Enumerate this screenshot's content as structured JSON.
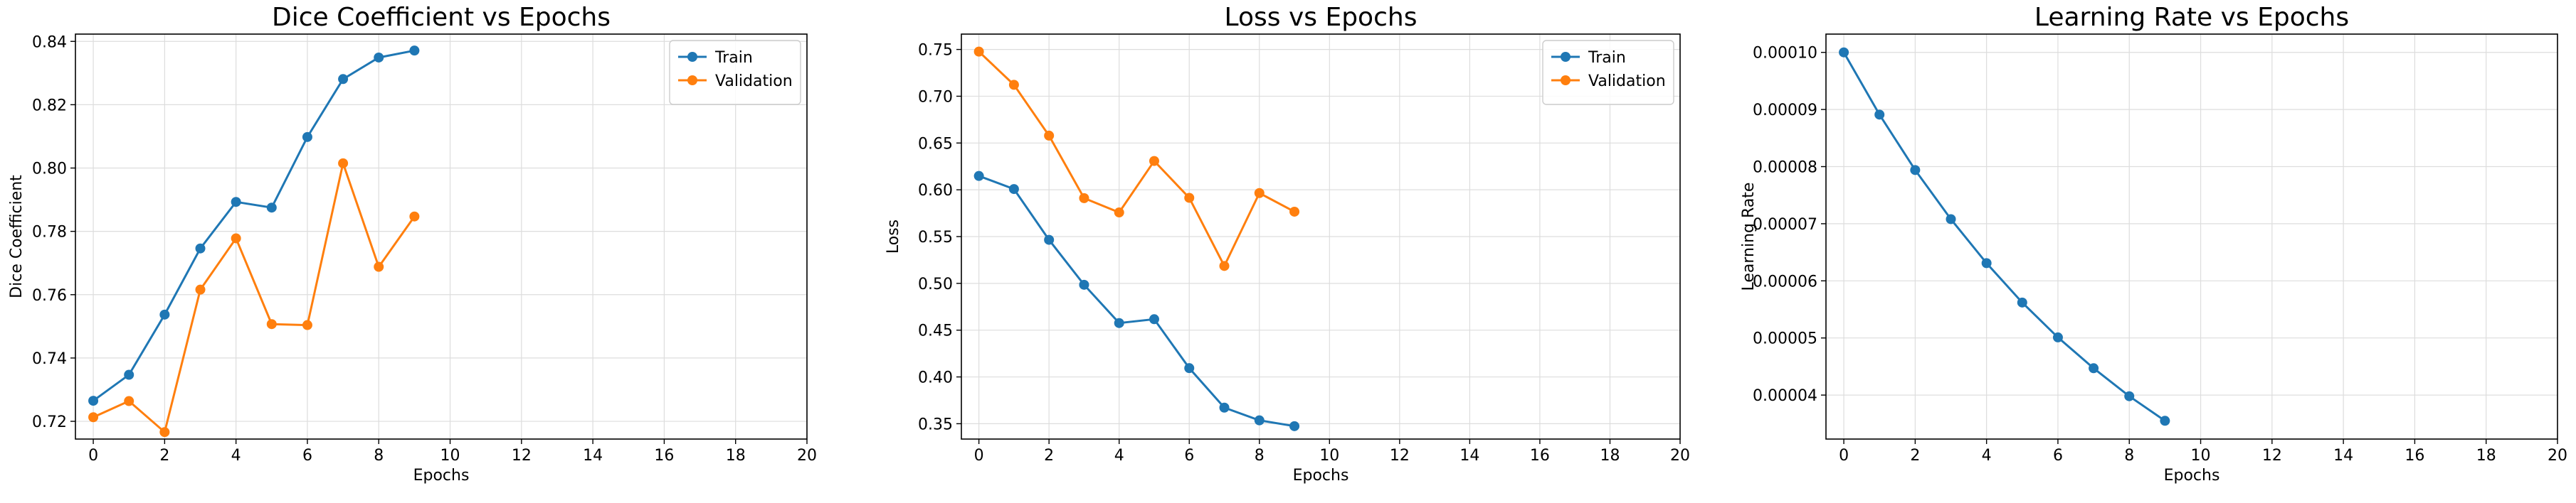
{
  "chart_data": [
    {
      "type": "line",
      "title": "Dice Coefficient vs Epochs",
      "xlabel": "Epochs",
      "ylabel": "Dice Coefficient",
      "xlim": [
        -0.5,
        20
      ],
      "ylim": [
        0.7144,
        0.8423
      ],
      "xticks": [
        0,
        2,
        4,
        6,
        8,
        10,
        12,
        14,
        16,
        18,
        20
      ],
      "xtick_labels": [
        "0",
        "2",
        "4",
        "6",
        "8",
        "10",
        "12",
        "14",
        "16",
        "18",
        "20"
      ],
      "yticks": [
        0.72,
        0.74,
        0.76,
        0.78,
        0.8,
        0.82,
        0.84
      ],
      "ytick_labels": [
        "0.72",
        "0.74",
        "0.76",
        "0.78",
        "0.80",
        "0.82",
        "0.84"
      ],
      "grid": true,
      "legend": "top-right",
      "x": [
        0,
        1,
        2,
        3,
        4,
        5,
        6,
        7,
        8,
        9
      ],
      "series": [
        {
          "name": "Train",
          "color": "#1f77b4",
          "values": [
            0.7265,
            0.7347,
            0.7537,
            0.7746,
            0.7893,
            0.7875,
            0.8098,
            0.8281,
            0.8349,
            0.8371
          ]
        },
        {
          "name": "Validation",
          "color": "#ff7f0e",
          "values": [
            0.7213,
            0.7264,
            0.7166,
            0.7616,
            0.7778,
            0.7507,
            0.7504,
            0.8015,
            0.7688,
            0.7847
          ]
        }
      ]
    },
    {
      "type": "line",
      "title": "Loss vs Epochs",
      "xlabel": "Epochs",
      "ylabel": "Loss",
      "xlim": [
        -0.5,
        20
      ],
      "ylim": [
        0.3336,
        0.7664
      ],
      "xticks": [
        0,
        2,
        4,
        6,
        8,
        10,
        12,
        14,
        16,
        18,
        20
      ],
      "xtick_labels": [
        "0",
        "2",
        "4",
        "6",
        "8",
        "10",
        "12",
        "14",
        "16",
        "18",
        "20"
      ],
      "yticks": [
        0.35,
        0.4,
        0.45,
        0.5,
        0.55,
        0.6,
        0.65,
        0.7,
        0.75
      ],
      "ytick_labels": [
        "0.35",
        "0.40",
        "0.45",
        "0.50",
        "0.55",
        "0.60",
        "0.65",
        "0.70",
        "0.75"
      ],
      "grid": true,
      "legend": "top-right",
      "x": [
        0,
        1,
        2,
        3,
        4,
        5,
        6,
        7,
        8,
        9
      ],
      "series": [
        {
          "name": "Train",
          "color": "#1f77b4",
          "values": [
            0.6148,
            0.6008,
            0.5465,
            0.4985,
            0.4576,
            0.4617,
            0.4094,
            0.3672,
            0.3536,
            0.3474
          ]
        },
        {
          "name": "Validation",
          "color": "#ff7f0e",
          "values": [
            0.7477,
            0.7122,
            0.6579,
            0.5911,
            0.5758,
            0.6308,
            0.5914,
            0.5186,
            0.5965,
            0.5766
          ]
        }
      ]
    },
    {
      "type": "line",
      "title": "Learning Rate vs Epochs",
      "xlabel": "Epochs",
      "ylabel": "Learning Rate",
      "xlim": [
        -0.5,
        20
      ],
      "ylim": [
        3.23e-05,
        0.0001032
      ],
      "xticks": [
        0,
        2,
        4,
        6,
        8,
        10,
        12,
        14,
        16,
        18,
        20
      ],
      "xtick_labels": [
        "0",
        "2",
        "4",
        "6",
        "8",
        "10",
        "12",
        "14",
        "16",
        "18",
        "20"
      ],
      "yticks": [
        4e-05,
        5e-05,
        6e-05,
        7e-05,
        8e-05,
        9e-05,
        0.0001
      ],
      "ytick_labels": [
        "0.00004",
        "0.00005",
        "0.00006",
        "0.00007",
        "0.00008",
        "0.00009",
        "0.00010"
      ],
      "grid": true,
      "x": [
        0,
        1,
        2,
        3,
        4,
        5,
        6,
        7,
        8,
        9
      ],
      "series": [
        {
          "color": "#1f77b4",
          "values": [
            0.0001,
            8.91e-05,
            7.94e-05,
            7.08e-05,
            6.31e-05,
            5.62e-05,
            5.01e-05,
            4.47e-05,
            3.98e-05,
            3.55e-05
          ]
        }
      ]
    }
  ]
}
